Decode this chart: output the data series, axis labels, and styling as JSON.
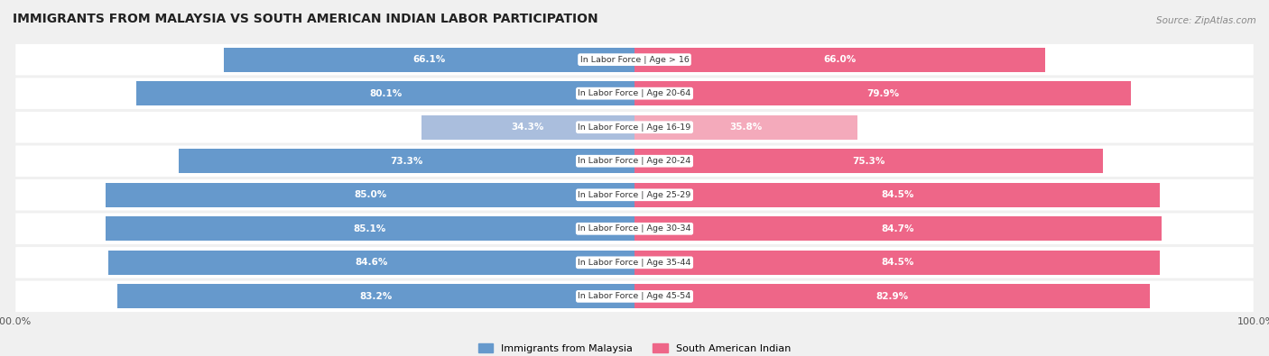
{
  "title": "IMMIGRANTS FROM MALAYSIA VS SOUTH AMERICAN INDIAN LABOR PARTICIPATION",
  "source": "Source: ZipAtlas.com",
  "categories": [
    "In Labor Force | Age > 16",
    "In Labor Force | Age 20-64",
    "In Labor Force | Age 16-19",
    "In Labor Force | Age 20-24",
    "In Labor Force | Age 25-29",
    "In Labor Force | Age 30-34",
    "In Labor Force | Age 35-44",
    "In Labor Force | Age 45-54"
  ],
  "malaysia_values": [
    66.1,
    80.1,
    34.3,
    73.3,
    85.0,
    85.1,
    84.6,
    83.2
  ],
  "south_american_values": [
    66.0,
    79.9,
    35.8,
    75.3,
    84.5,
    84.7,
    84.5,
    82.9
  ],
  "malaysia_color": "#6699CC",
  "malaysia_color_light": "#AABEDD",
  "south_american_color": "#EE6688",
  "south_american_color_light": "#F4AABB",
  "bar_height": 0.72,
  "background_color": "#F0F0F0",
  "legend_malaysia": "Immigrants from Malaysia",
  "legend_south_american": "South American Indian",
  "xlim": 100
}
